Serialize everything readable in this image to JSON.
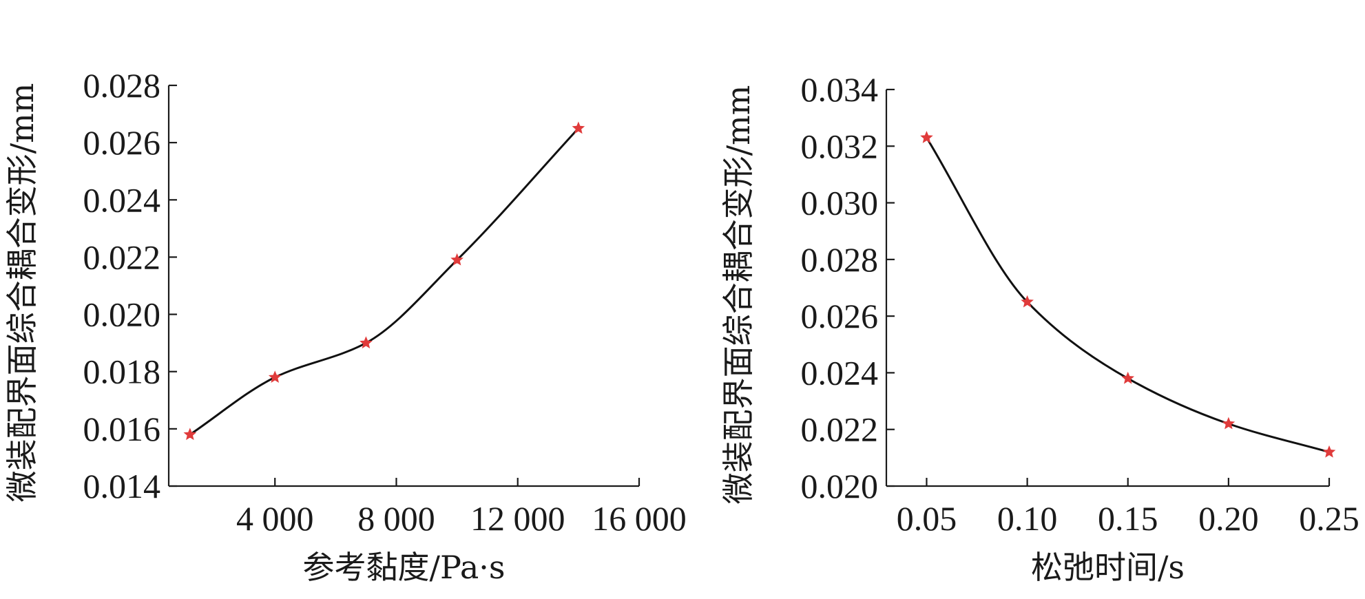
{
  "colors": {
    "axis": "#1a1a1a",
    "curve": "#111111",
    "marker": "#e03b3b"
  },
  "chart_data": [
    {
      "type": "line",
      "markers": "star",
      "xlabel": "参考黏度/Pa·s",
      "ylabel": "微装配界面综合耦合变形/mm",
      "xlim": [
        500,
        16000
      ],
      "ylim": [
        0.014,
        0.028
      ],
      "x_ticks": [
        4000,
        8000,
        12000,
        16000
      ],
      "x_tick_labels": [
        "4 000",
        "8 000",
        "12 000",
        "16 000"
      ],
      "y_ticks": [
        0.014,
        0.016,
        0.018,
        0.02,
        0.022,
        0.024,
        0.026,
        0.028
      ],
      "y_tick_labels": [
        "0.014",
        "0.016",
        "0.018",
        "0.020",
        "0.022",
        "0.024",
        "0.026",
        "0.028"
      ],
      "x": [
        1200,
        4000,
        7000,
        10000,
        14000
      ],
      "y": [
        0.0158,
        0.0178,
        0.019,
        0.0219,
        0.0265
      ],
      "grid": false,
      "legend": "none"
    },
    {
      "type": "line",
      "markers": "star",
      "xlabel": "松弛时间/s",
      "ylabel": "微装配界面综合耦合变形/mm",
      "xlim": [
        0.03,
        0.25
      ],
      "ylim": [
        0.02,
        0.034
      ],
      "x_ticks": [
        0.05,
        0.1,
        0.15,
        0.2,
        0.25
      ],
      "x_tick_labels": [
        "0.05",
        "0.10",
        "0.15",
        "0.20",
        "0.25"
      ],
      "y_ticks": [
        0.02,
        0.022,
        0.024,
        0.026,
        0.028,
        0.03,
        0.032,
        0.034
      ],
      "y_tick_labels": [
        "0.020",
        "0.022",
        "0.024",
        "0.026",
        "0.028",
        "0.030",
        "0.032",
        "0.034"
      ],
      "x": [
        0.05,
        0.1,
        0.15,
        0.2,
        0.25
      ],
      "y": [
        0.0323,
        0.0265,
        0.0238,
        0.0222,
        0.0212
      ],
      "grid": false,
      "legend": "none"
    }
  ]
}
